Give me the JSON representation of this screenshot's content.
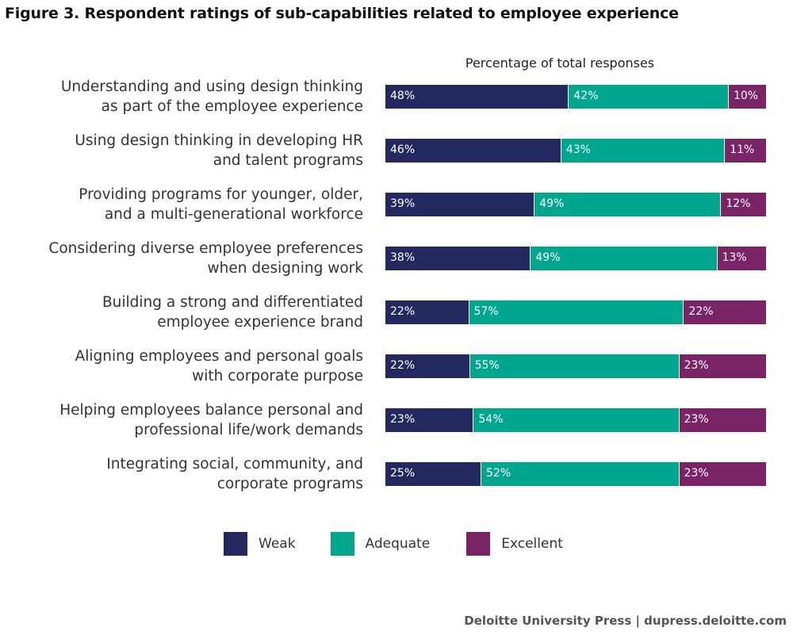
{
  "title": "Figure 3. Respondent ratings of sub-capabilities related to employee experience",
  "footer": "Deloitte University Press  |  dupress.deloitte.com",
  "colors": {
    "weak": "#23295f",
    "adequate": "#00a68e",
    "excellent": "#7a2367"
  },
  "chart_data": {
    "type": "bar",
    "orientation": "horizontal",
    "stacked": true,
    "subtitle": "Percentage of total responses",
    "categories": [
      "Understanding and using design thinking\nas part of the employee experience",
      "Using design thinking in developing HR\nand talent programs",
      "Providing programs for younger, older,\nand a multi-generational workforce",
      "Considering diverse employee preferences\nwhen designing work",
      "Building a strong and differentiated\nemployee experience brand",
      "Aligning employees and personal goals\nwith corporate purpose",
      "Helping employees balance personal and\nprofessional life/work demands",
      "Integrating social, community, and\ncorporate programs"
    ],
    "series": [
      {
        "name": "Weak",
        "values": [
          48,
          46,
          39,
          38,
          22,
          22,
          23,
          25
        ]
      },
      {
        "name": "Adequate",
        "values": [
          42,
          43,
          49,
          49,
          57,
          55,
          54,
          52
        ]
      },
      {
        "name": "Excellent",
        "values": [
          10,
          11,
          12,
          13,
          22,
          23,
          23,
          23
        ]
      }
    ],
    "legend_position": "bottom",
    "grid": false
  }
}
